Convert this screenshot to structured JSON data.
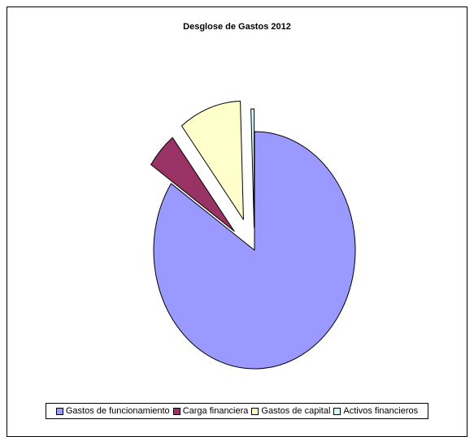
{
  "chart_data": {
    "type": "pie",
    "title": "Desglose de Gastos 2012",
    "exploded": true,
    "legend_position": "bottom",
    "slices": [
      {
        "name": "Gastos de funcionamiento",
        "value": 84.5,
        "color": "#9999ff"
      },
      {
        "name": "Carga financiera",
        "value": 5.0,
        "color": "#993366"
      },
      {
        "name": "Gastos de capital",
        "value": 10.0,
        "color": "#ffffcc"
      },
      {
        "name": "Activos financieros",
        "value": 0.5,
        "color": "#ccffff"
      }
    ]
  }
}
